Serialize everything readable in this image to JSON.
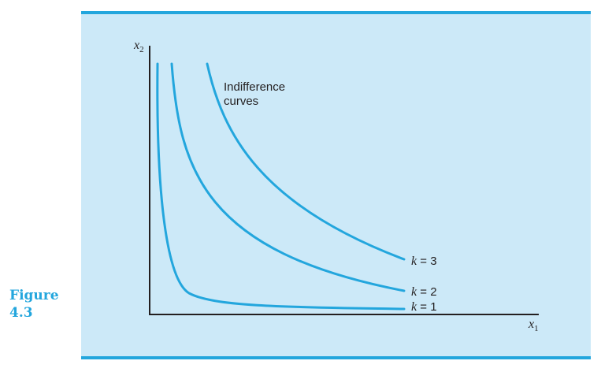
{
  "figure": {
    "word": "Figure",
    "number": "4.3"
  },
  "axes": {
    "x_label_var": "x",
    "x_label_sub": "1",
    "y_label_var": "x",
    "y_label_sub": "2"
  },
  "annotation": {
    "line1": "Indifference",
    "line2": "curves"
  },
  "curves": [
    {
      "k_var": "k",
      "k_text": " = 3"
    },
    {
      "k_var": "k",
      "k_text": " = 2"
    },
    {
      "k_var": "k",
      "k_text": " = 1"
    }
  ],
  "colors": {
    "panel_background": "#cce9f8",
    "accent": "#23a6dd",
    "axis": "#231f20"
  }
}
